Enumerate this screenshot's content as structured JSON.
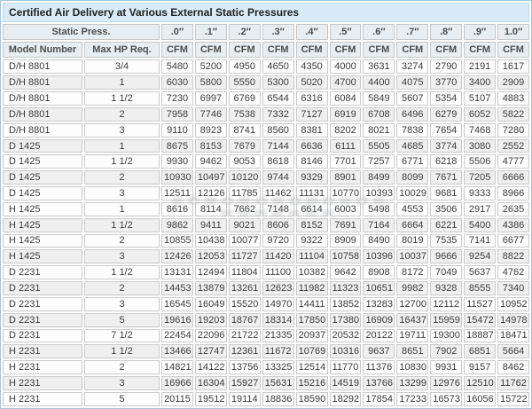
{
  "title": "Certified Air Delivery at Various External Static Pressures",
  "table": {
    "static_press_label": "Static Press.",
    "model_header": "Model Number",
    "hp_header": "Max HP Req.",
    "cfm_label": "CFM",
    "pressure_columns": [
      ".0″",
      ".1″",
      ".2″",
      ".3″",
      ".4″",
      ".5″",
      ".6″",
      ".7″",
      ".8″",
      ".9″",
      "1.0″"
    ],
    "rows": [
      {
        "model": "D/H 8801",
        "hp": "3/4",
        "shaded": false,
        "cfm": [
          5480,
          5200,
          4950,
          4650,
          4350,
          4000,
          3631,
          3274,
          2790,
          2191,
          1617
        ]
      },
      {
        "model": "D/H 8801",
        "hp": "1",
        "shaded": true,
        "cfm": [
          6030,
          5800,
          5550,
          5300,
          5020,
          4700,
          4400,
          4075,
          3770,
          3400,
          2909
        ]
      },
      {
        "model": "D/H 8801",
        "hp": "1 1/2",
        "shaded": false,
        "cfm": [
          7230,
          6997,
          6769,
          6544,
          6316,
          6084,
          5849,
          5607,
          5354,
          5107,
          4883
        ]
      },
      {
        "model": "D/H 8801",
        "hp": "2",
        "shaded": true,
        "cfm": [
          7958,
          7746,
          7538,
          7332,
          7127,
          6919,
          6708,
          6496,
          6279,
          6052,
          5822
        ]
      },
      {
        "model": "D/H 8801",
        "hp": "3",
        "shaded": false,
        "cfm": [
          9110,
          8923,
          8741,
          8560,
          8381,
          8202,
          8021,
          7838,
          7654,
          7468,
          7280
        ]
      },
      {
        "model": "D 1425",
        "hp": "1",
        "shaded": true,
        "cfm": [
          8675,
          8153,
          7679,
          7144,
          6636,
          6111,
          5505,
          4685,
          3774,
          3080,
          2552
        ]
      },
      {
        "model": "D 1425",
        "hp": "1 1/2",
        "shaded": false,
        "cfm": [
          9930,
          9462,
          9053,
          8618,
          8146,
          7701,
          7257,
          6771,
          6218,
          5506,
          4777
        ]
      },
      {
        "model": "D 1425",
        "hp": "2",
        "shaded": true,
        "cfm": [
          10930,
          10497,
          10120,
          9744,
          9329,
          8901,
          8499,
          8099,
          7671,
          7205,
          6666
        ]
      },
      {
        "model": "D 1425",
        "hp": "3",
        "shaded": false,
        "cfm": [
          12511,
          12126,
          11785,
          11462,
          11131,
          10770,
          10393,
          10029,
          9681,
          9333,
          8966
        ]
      },
      {
        "model": "H 1425",
        "hp": "1",
        "shaded": false,
        "cfm": [
          8616,
          8114,
          7662,
          7148,
          6614,
          6003,
          5498,
          4553,
          3506,
          2917,
          2635
        ]
      },
      {
        "model": "H 1425",
        "hp": "1 1/2",
        "shaded": true,
        "cfm": [
          9862,
          9411,
          9021,
          8606,
          8152,
          7691,
          7164,
          6664,
          6221,
          5400,
          4386
        ]
      },
      {
        "model": "H 1425",
        "hp": "2",
        "shaded": false,
        "cfm": [
          10855,
          10438,
          10077,
          9720,
          9322,
          8909,
          8490,
          8019,
          7535,
          7141,
          6677
        ]
      },
      {
        "model": "H 1425",
        "hp": "3",
        "shaded": true,
        "cfm": [
          12426,
          12053,
          11727,
          11420,
          11104,
          10758,
          10396,
          10037,
          9666,
          9254,
          8822
        ]
      },
      {
        "model": "D 2231",
        "hp": "1 1/2",
        "shaded": false,
        "cfm": [
          13131,
          12494,
          11804,
          11100,
          10382,
          9642,
          8908,
          8172,
          7049,
          5637,
          4762
        ]
      },
      {
        "model": "D 2231",
        "hp": "2",
        "shaded": true,
        "cfm": [
          14453,
          13879,
          13261,
          12623,
          11982,
          11323,
          10651,
          9982,
          9328,
          8555,
          7340
        ]
      },
      {
        "model": "D 2231",
        "hp": "3",
        "shaded": false,
        "cfm": [
          16545,
          16049,
          15520,
          14970,
          14411,
          13852,
          13283,
          12700,
          12112,
          11527,
          10952
        ]
      },
      {
        "model": "D 2231",
        "hp": "5",
        "shaded": true,
        "cfm": [
          19616,
          19203,
          18767,
          18314,
          17850,
          17380,
          16909,
          16437,
          15959,
          15472,
          14978
        ]
      },
      {
        "model": "D 2231",
        "hp": "7 1/2",
        "shaded": false,
        "cfm": [
          22454,
          22096,
          21722,
          21335,
          20937,
          20532,
          20122,
          19711,
          19300,
          18887,
          18471
        ]
      },
      {
        "model": "H 2231",
        "hp": "1 1/2",
        "shaded": true,
        "cfm": [
          13466,
          12747,
          12361,
          11672,
          10769,
          10316,
          9637,
          8651,
          7902,
          6851,
          5664
        ]
      },
      {
        "model": "H 2231",
        "hp": "2",
        "shaded": false,
        "cfm": [
          14821,
          14122,
          13756,
          13325,
          12514,
          11770,
          11376,
          10830,
          9931,
          9157,
          8462
        ]
      },
      {
        "model": "H 2231",
        "hp": "3",
        "shaded": true,
        "cfm": [
          16966,
          16304,
          15927,
          15631,
          15216,
          14519,
          13766,
          13299,
          12976,
          12510,
          11762
        ]
      },
      {
        "model": "H 2231",
        "hp": "5",
        "shaded": false,
        "cfm": [
          20115,
          19512,
          19114,
          18836,
          18590,
          18292,
          17854,
          17233,
          16573,
          16056,
          15722
        ]
      }
    ]
  },
  "colors": {
    "title_background": "#d8ebf7",
    "header_background": "#e7edf1",
    "shaded_row_background": "#efefef",
    "cell_border": "#c9c9c9",
    "outer_border": "#a6c6dc",
    "text": "#3c3c3c"
  }
}
